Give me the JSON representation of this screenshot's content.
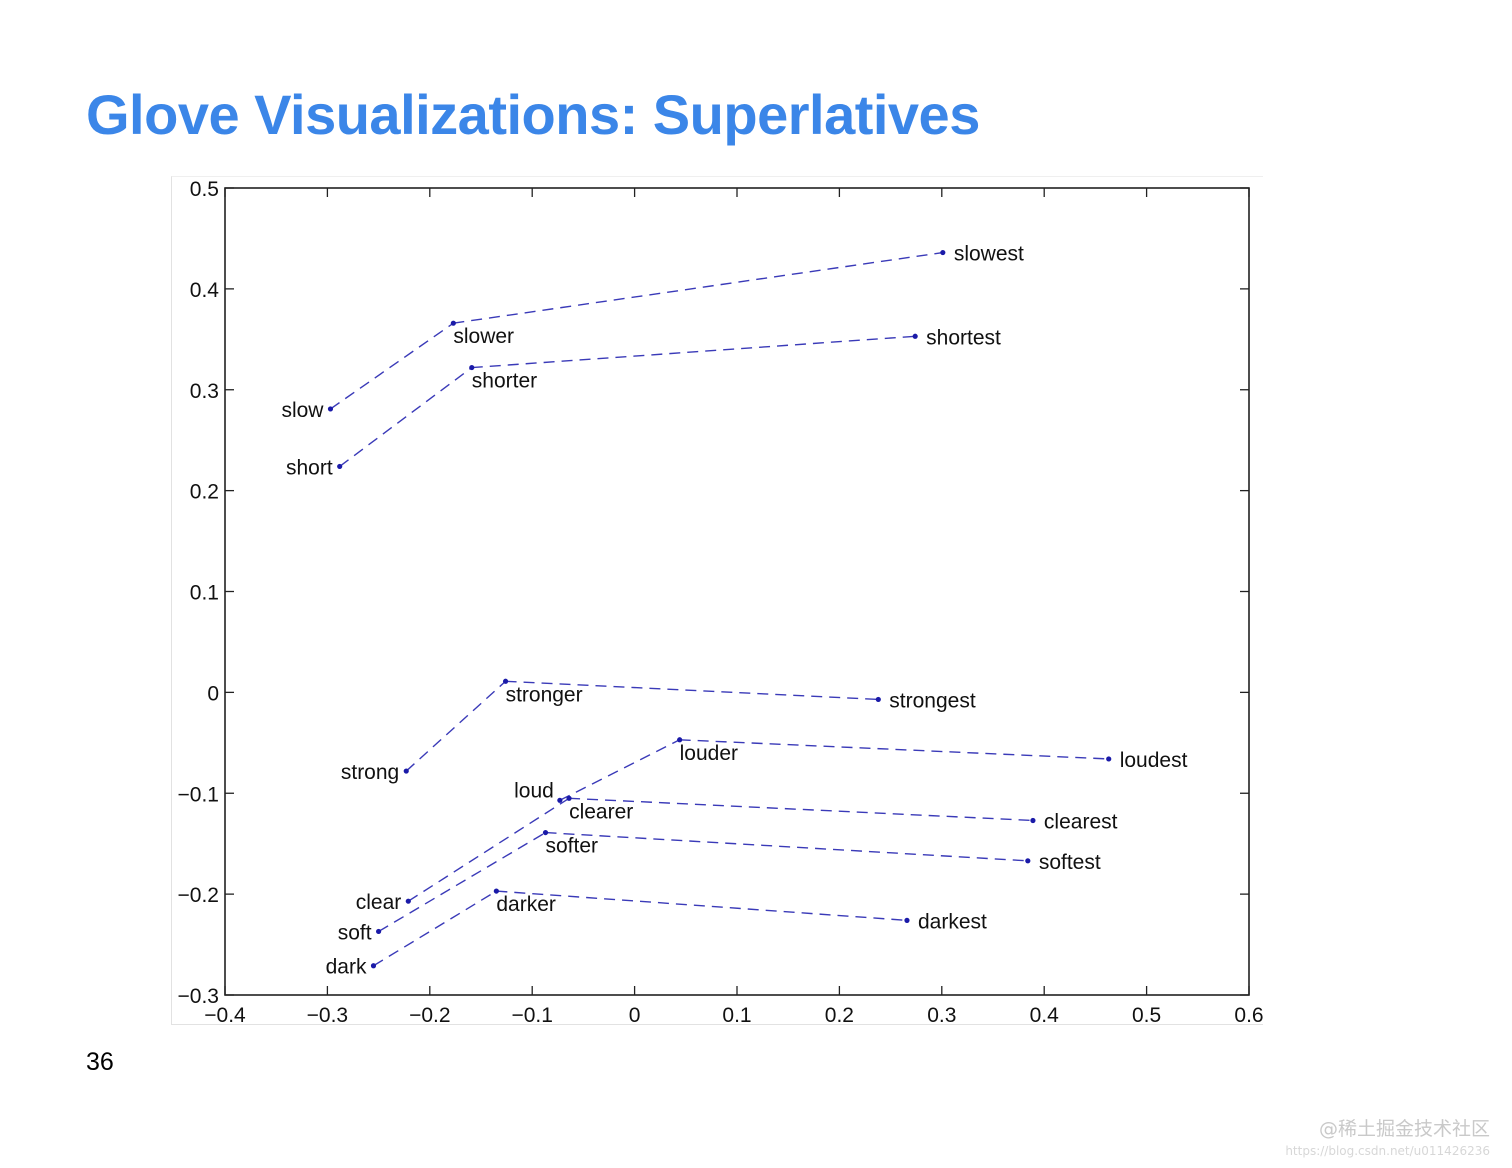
{
  "slide": {
    "title": "Glove Visualizations: Superlatives",
    "title_color": "#3b86e8",
    "number": "36",
    "watermark": "@稀土掘金技术社区",
    "watermark_url": "https://blog.csdn.net/u011426236"
  },
  "chart_data": {
    "type": "scatter",
    "title": "",
    "xlabel": "",
    "ylabel": "",
    "xlim": [
      -0.4,
      0.6
    ],
    "ylim": [
      -0.3,
      0.5
    ],
    "xticks": [
      -0.4,
      -0.3,
      -0.2,
      -0.1,
      0,
      0.1,
      0.2,
      0.3,
      0.4,
      0.5,
      0.6
    ],
    "yticks": [
      -0.3,
      -0.2,
      -0.1,
      0,
      0.1,
      0.2,
      0.3,
      0.4,
      0.5
    ],
    "xtick_labels": [
      "−0.4",
      "−0.3",
      "−0.2",
      "−0.1",
      "0",
      "0.1",
      "0.2",
      "0.3",
      "0.4",
      "0.5",
      "0.6"
    ],
    "ytick_labels": [
      "−0.3",
      "−0.2",
      "−0.1",
      "0",
      "0.1",
      "0.2",
      "0.3",
      "0.4",
      "0.5"
    ],
    "grid": false,
    "point_color": "#1a1aa8",
    "line_color": "#3a3ab8",
    "line_style": "dashed",
    "chains": [
      {
        "words": [
          {
            "label": "slow",
            "x": -0.297,
            "y": 0.281,
            "label_side": "left"
          },
          {
            "label": "slower",
            "x": -0.177,
            "y": 0.366,
            "label_side": "below"
          },
          {
            "label": "slowest",
            "x": 0.301,
            "y": 0.436,
            "label_side": "right"
          }
        ]
      },
      {
        "words": [
          {
            "label": "short",
            "x": -0.288,
            "y": 0.224,
            "label_side": "left"
          },
          {
            "label": "shorter",
            "x": -0.159,
            "y": 0.322,
            "label_side": "below"
          },
          {
            "label": "shortest",
            "x": 0.274,
            "y": 0.353,
            "label_side": "right"
          }
        ]
      },
      {
        "words": [
          {
            "label": "strong",
            "x": -0.223,
            "y": -0.078,
            "label_side": "left"
          },
          {
            "label": "stronger",
            "x": -0.126,
            "y": 0.011,
            "label_side": "below"
          },
          {
            "label": "strongest",
            "x": 0.238,
            "y": -0.007,
            "label_side": "right"
          }
        ]
      },
      {
        "words": [
          {
            "label": "loud",
            "x": -0.073,
            "y": -0.107,
            "label_side": "above-left"
          },
          {
            "label": "louder",
            "x": 0.044,
            "y": -0.047,
            "label_side": "below"
          },
          {
            "label": "loudest",
            "x": 0.463,
            "y": -0.066,
            "label_side": "right"
          }
        ]
      },
      {
        "words": [
          {
            "label": "clear",
            "x": -0.221,
            "y": -0.207,
            "label_side": "left"
          },
          {
            "label": "clearer",
            "x": -0.064,
            "y": -0.105,
            "label_side": "below"
          },
          {
            "label": "clearest",
            "x": 0.389,
            "y": -0.127,
            "label_side": "right"
          }
        ]
      },
      {
        "words": [
          {
            "label": "soft",
            "x": -0.25,
            "y": -0.237,
            "label_side": "left"
          },
          {
            "label": "softer",
            "x": -0.087,
            "y": -0.139,
            "label_side": "below"
          },
          {
            "label": "softest",
            "x": 0.384,
            "y": -0.167,
            "label_side": "right"
          }
        ]
      },
      {
        "words": [
          {
            "label": "dark",
            "x": -0.255,
            "y": -0.271,
            "label_side": "left"
          },
          {
            "label": "darker",
            "x": -0.135,
            "y": -0.197,
            "label_side": "below"
          },
          {
            "label": "darkest",
            "x": 0.266,
            "y": -0.226,
            "label_side": "right"
          }
        ]
      }
    ]
  }
}
